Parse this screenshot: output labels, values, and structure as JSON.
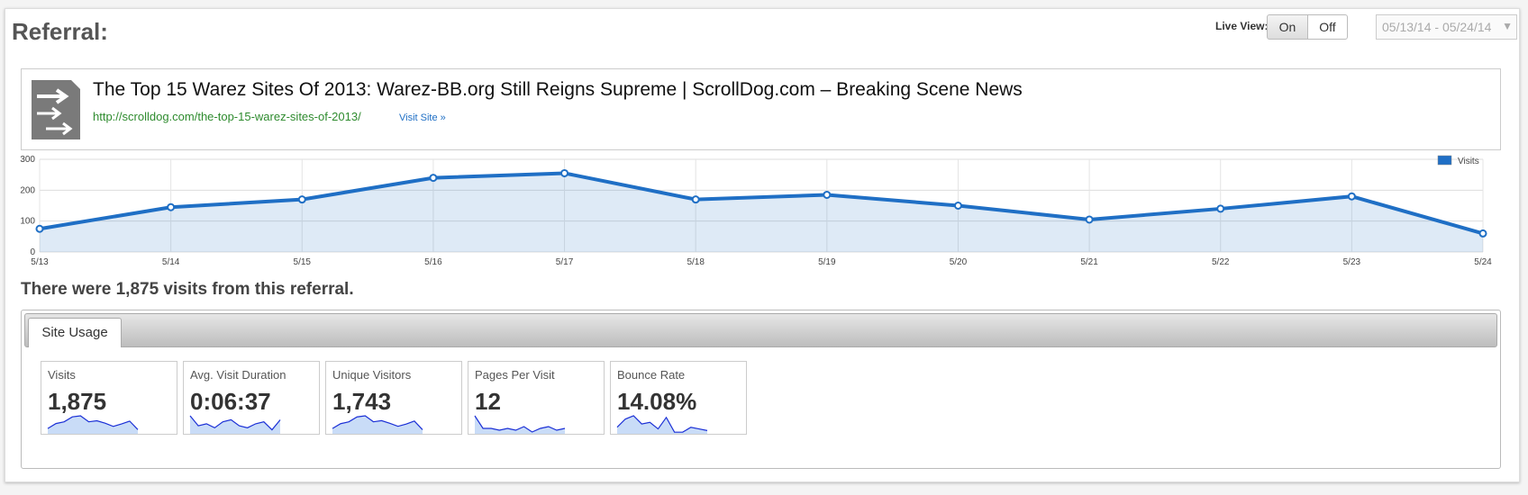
{
  "header": {
    "title": "Referral:",
    "live_view_label": "Live View:",
    "live_view_options": [
      "On",
      "Off"
    ],
    "date_range": "05/13/14 - 05/24/14"
  },
  "referrer": {
    "title": "The Top 15 Warez Sites Of 2013: Warez-BB.org Still Reigns Supreme | ScrollDog.com – Breaking Scene News",
    "url": "http://scrolldog.com/the-top-15-warez-sites-of-2013/",
    "visit_link": "Visit Site »"
  },
  "chart_data": {
    "type": "line",
    "categories": [
      "5/13",
      "5/14",
      "5/15",
      "5/16",
      "5/17",
      "5/18",
      "5/19",
      "5/20",
      "5/21",
      "5/22",
      "5/23",
      "5/24"
    ],
    "series": [
      {
        "name": "Visits",
        "color": "#1f6fc5",
        "values": [
          75,
          145,
          170,
          240,
          255,
          170,
          185,
          150,
          105,
          140,
          180,
          60
        ]
      }
    ],
    "ylim": [
      0,
      300
    ],
    "yticks": [
      0,
      100,
      200,
      300
    ],
    "grid": true,
    "legend": "top-right"
  },
  "summary": "There were 1,875 visits from this referral.",
  "tabs": [
    "Site Usage"
  ],
  "metrics": [
    {
      "label": "Visits",
      "value": "1,875",
      "sparkline": [
        75,
        145,
        170,
        240,
        255,
        170,
        185,
        150,
        105,
        140,
        180,
        60
      ]
    },
    {
      "label": "Avg. Visit Duration",
      "value": "0:06:37",
      "sparkline": [
        9,
        4,
        5,
        3,
        6,
        7,
        4,
        3,
        5,
        6,
        2,
        7
      ]
    },
    {
      "label": "Unique Visitors",
      "value": "1,743",
      "sparkline": [
        70,
        135,
        160,
        225,
        240,
        160,
        175,
        140,
        100,
        130,
        170,
        55
      ]
    },
    {
      "label": "Pages Per Visit",
      "value": "12",
      "sparkline": [
        10,
        3,
        3,
        2,
        3,
        2,
        4,
        1,
        3,
        4,
        2,
        3
      ]
    },
    {
      "label": "Bounce Rate",
      "value": "14.08%",
      "sparkline": [
        4,
        9,
        11,
        6,
        7,
        3,
        10,
        1,
        1,
        4,
        3,
        2
      ]
    }
  ]
}
